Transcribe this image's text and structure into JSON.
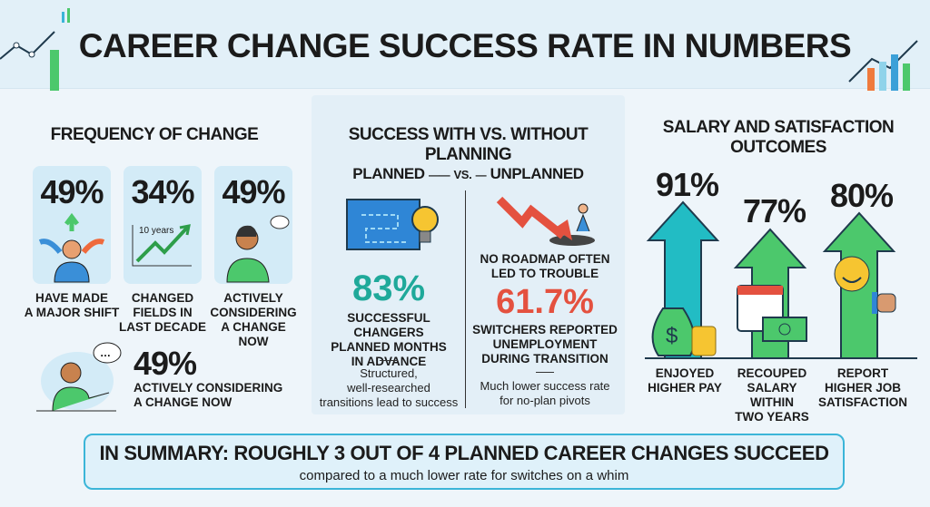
{
  "title": "CAREER CHANGE SUCCESS RATE IN NUMBERS",
  "frequency": {
    "title": "FREQUENCY OF CHANGE",
    "cards": [
      {
        "value": "49%",
        "label": [
          "HAVE MADE",
          "A MAJOR SHIFT"
        ],
        "icon": "person-arrows-icon"
      },
      {
        "value": "34%",
        "label": [
          "CHANGED",
          "FIELDS IN",
          "LAST DECADE"
        ],
        "icon": "growth-chart-icon",
        "chart_label": "10 years"
      },
      {
        "value": "49%",
        "label": [
          "ACTIVELY",
          "CONSIDERING",
          "A CHANGE NOW"
        ],
        "icon": "thinking-person-icon"
      }
    ],
    "bottom": {
      "value": "49%",
      "label": [
        "ACTIVELY CONSIDERING",
        "A CHANGE NOW"
      ],
      "icon": "speaking-person-icon"
    }
  },
  "planning": {
    "title": "SUCCESS WITH VS. WITHOUT PLANNING",
    "planned_label": "PLANNED",
    "vs_label": "VS.",
    "unplanned_label": "UNPLANNED",
    "planned": {
      "value": "83%",
      "label": [
        "SUCCESSFUL CHANGERS",
        "PLANNED MONTHS",
        "IN ADVANCE"
      ],
      "note": [
        "Structured,",
        "well-researched",
        "transitions lead to success"
      ]
    },
    "unplanned": {
      "caption": [
        "NO ROADMAP OFTEN",
        "LED TO TROUBLE"
      ],
      "value": "61.7%",
      "label": [
        "SWITCHERS REPORTED",
        "UNEMPLOYMENT",
        "DURING TRANSITION"
      ],
      "note": [
        "Much lower success rate",
        "for no-plan pivots"
      ]
    },
    "colors": {
      "planned": "#1fa99a",
      "unplanned": "#e4513f"
    }
  },
  "outcomes": {
    "title": [
      "SALARY AND SATISFACTION",
      "OUTCOMES"
    ],
    "items": [
      {
        "value": "91%",
        "label": [
          "ENJOYED",
          "HIGHER PAY"
        ],
        "color": "#22bcc4",
        "icon": "money-bag-icon"
      },
      {
        "value": "77%",
        "label": [
          "RECOUPED",
          "SALARY WITHIN",
          "TWO YEARS"
        ],
        "color": "#4cc86c",
        "icon": "calendar-cash-icon"
      },
      {
        "value": "80%",
        "label": [
          "REPORT",
          "HIGHER JOB",
          "SATISFACTION"
        ],
        "color": "#4cc86c",
        "icon": "smiley-thumbs-up-icon"
      }
    ]
  },
  "summary": {
    "headline": "IN SUMMARY: ROUGHLY 3 OUT OF 4 PLANNED CAREER CHANGES SUCCEED",
    "sub": "compared to a much lower rate for switches on a whim"
  }
}
